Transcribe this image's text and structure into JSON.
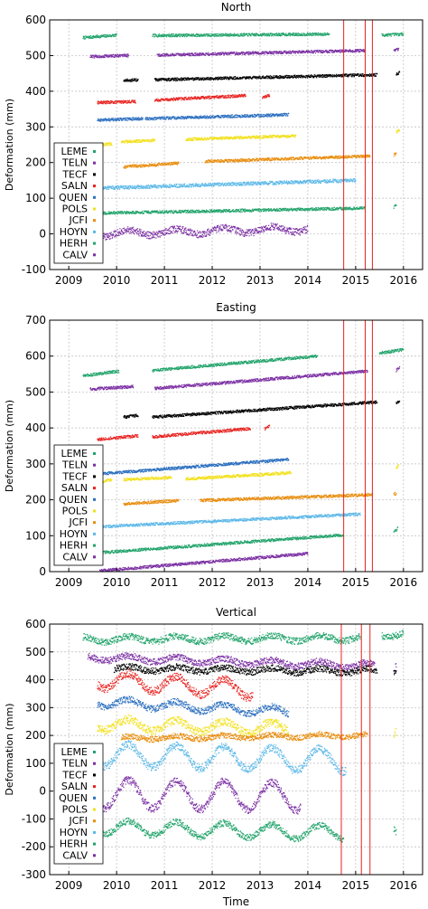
{
  "figure": {
    "xlabel": "Time"
  },
  "chart_data": [
    {
      "type": "scatter",
      "title": "North",
      "xlabel": "",
      "ylabel": "Deformation (mm)",
      "xlim": [
        2008.6,
        2016.4
      ],
      "ylim": [
        -100,
        600
      ],
      "x_ticks": [
        2009,
        2010,
        2011,
        2012,
        2013,
        2014,
        2015,
        2016
      ],
      "y_ticks": [
        -100,
        0,
        100,
        200,
        300,
        400,
        500,
        600
      ],
      "grid": true,
      "legend": {
        "position": "left-center",
        "entries": [
          "LEME",
          "TELN",
          "TECF",
          "SALN",
          "QUEN",
          "POLS",
          "JCFI",
          "HOYN",
          "HERH",
          "CALV"
        ]
      },
      "vlines": [
        2014.75,
        2015.2,
        2015.35
      ],
      "series": [
        {
          "name": "LEME",
          "color": "#22a36b",
          "segments": [
            [
              2009.3,
              2010.0,
              550,
              557
            ],
            [
              2010.75,
              2014.45,
              556,
              560
            ],
            [
              2015.55,
              2016.0,
              557,
              560
            ]
          ],
          "noise": 4
        },
        {
          "name": "TELN",
          "color": "#7b2fa3",
          "segments": [
            [
              2009.45,
              2010.25,
              497,
              500
            ],
            [
              2010.85,
              2015.2,
              501,
              514
            ],
            [
              2015.8,
              2015.9,
              515,
              517
            ]
          ],
          "noise": 4
        },
        {
          "name": "TECF",
          "color": "#000000",
          "segments": [
            [
              2010.15,
              2010.45,
              430,
              432
            ],
            [
              2010.8,
              2015.45,
              432,
              446
            ],
            [
              2015.85,
              2015.92,
              448,
              452
            ]
          ],
          "noise": 4
        },
        {
          "name": "SALN",
          "color": "#e8211e",
          "segments": [
            [
              2009.6,
              2010.4,
              368,
              371
            ],
            [
              2010.8,
              2012.7,
              375,
              388
            ],
            [
              2013.05,
              2013.2,
              383,
              388
            ]
          ],
          "noise": 4
        },
        {
          "name": "QUEN",
          "color": "#2a6ebf",
          "segments": [
            [
              2009.6,
              2010.55,
              319,
              323
            ],
            [
              2010.6,
              2013.6,
              323,
              334
            ]
          ],
          "noise": 4
        },
        {
          "name": "POLS",
          "color": "#f2e01a",
          "segments": [
            [
              2009.6,
              2009.9,
              250,
              252
            ],
            [
              2010.1,
              2010.8,
              258,
              262
            ],
            [
              2011.45,
              2013.75,
              265,
              275
            ],
            [
              2015.85,
              2015.92,
              285,
              290
            ]
          ],
          "noise": 4
        },
        {
          "name": "JCFI",
          "color": "#e98c0c",
          "segments": [
            [
              2010.15,
              2011.3,
              188,
              198
            ],
            [
              2011.85,
              2015.3,
              203,
              218
            ],
            [
              2015.8,
              2015.85,
              222,
              224
            ]
          ],
          "noise": 4
        },
        {
          "name": "HOYN",
          "color": "#5cb8e8",
          "segments": [
            [
              2009.6,
              2015.0,
              128,
              150
            ]
          ],
          "noise": 5
        },
        {
          "name": "HERH",
          "color": "#22a36b",
          "segments": [
            [
              2009.6,
              2015.2,
              58,
              72
            ],
            [
              2015.8,
              2015.85,
              75,
              80
            ]
          ],
          "noise": 4
        },
        {
          "name": "CALV",
          "color": "#7b2fa3",
          "segments": [
            [
              2009.6,
              2014.0,
              0,
              14
            ]
          ],
          "noise": 10,
          "wave": 8
        }
      ]
    },
    {
      "type": "scatter",
      "title": "Easting",
      "xlabel": "",
      "ylabel": "Deformation (mm)",
      "xlim": [
        2008.6,
        2016.4
      ],
      "ylim": [
        0,
        700
      ],
      "x_ticks": [
        2009,
        2010,
        2011,
        2012,
        2013,
        2014,
        2015,
        2016
      ],
      "y_ticks": [
        0,
        100,
        200,
        300,
        400,
        500,
        600,
        700
      ],
      "grid": true,
      "legend": {
        "position": "left-bottom",
        "entries": [
          "LEME",
          "TELN",
          "TECF",
          "SALN",
          "QUEN",
          "POLS",
          "JCFI",
          "HOYN",
          "HERH",
          "CALV"
        ]
      },
      "vlines": [
        2014.75,
        2015.2,
        2015.35
      ],
      "series": [
        {
          "name": "LEME",
          "color": "#22a36b",
          "segments": [
            [
              2009.3,
              2010.05,
              545,
              558
            ],
            [
              2010.75,
              2014.2,
              560,
              600
            ],
            [
              2015.5,
              2016.0,
              608,
              618
            ]
          ],
          "noise": 4
        },
        {
          "name": "TELN",
          "color": "#7b2fa3",
          "segments": [
            [
              2009.45,
              2010.35,
              508,
              515
            ],
            [
              2010.8,
              2015.25,
              510,
              558
            ],
            [
              2015.85,
              2015.92,
              560,
              568
            ]
          ],
          "noise": 4
        },
        {
          "name": "TECF",
          "color": "#000000",
          "segments": [
            [
              2010.15,
              2010.45,
              430,
              435
            ],
            [
              2010.75,
              2015.45,
              430,
              472
            ],
            [
              2015.85,
              2015.92,
              470,
              475
            ]
          ],
          "noise": 4
        },
        {
          "name": "SALN",
          "color": "#e8211e",
          "segments": [
            [
              2009.6,
              2010.45,
              368,
              378
            ],
            [
              2010.75,
              2012.8,
              375,
              398
            ],
            [
              2013.1,
              2013.2,
              398,
              405
            ]
          ],
          "noise": 4
        },
        {
          "name": "QUEN",
          "color": "#2a6ebf",
          "segments": [
            [
              2009.65,
              2013.6,
              272,
              312
            ]
          ],
          "noise": 4
        },
        {
          "name": "POLS",
          "color": "#f2e01a",
          "segments": [
            [
              2009.65,
              2009.9,
              250,
              255
            ],
            [
              2010.15,
              2011.15,
              256,
              262
            ],
            [
              2011.45,
              2013.65,
              258,
              275
            ],
            [
              2015.85,
              2015.9,
              290,
              295
            ]
          ],
          "noise": 4
        },
        {
          "name": "JCFI",
          "color": "#e98c0c",
          "segments": [
            [
              2010.15,
              2011.3,
              188,
              198
            ],
            [
              2011.75,
              2015.35,
              198,
              214
            ],
            [
              2015.8,
              2015.85,
              215,
              218
            ]
          ],
          "noise": 4
        },
        {
          "name": "HOYN",
          "color": "#5cb8e8",
          "segments": [
            [
              2009.65,
              2015.1,
              125,
              160
            ]
          ],
          "noise": 4
        },
        {
          "name": "HERH",
          "color": "#22a36b",
          "segments": [
            [
              2009.6,
              2014.75,
              52,
              102
            ],
            [
              2015.8,
              2015.88,
              110,
              120
            ]
          ],
          "noise": 4
        },
        {
          "name": "CALV",
          "color": "#7b2fa3",
          "segments": [
            [
              2009.65,
              2014.0,
              2,
              50
            ]
          ],
          "noise": 4
        }
      ]
    },
    {
      "type": "scatter",
      "title": "Vertical",
      "xlabel": "Time",
      "ylabel": "Deformation (mm)",
      "xlim": [
        2008.6,
        2016.4
      ],
      "ylim": [
        -300,
        600
      ],
      "x_ticks": [
        2009,
        2010,
        2011,
        2012,
        2013,
        2014,
        2015,
        2016
      ],
      "y_ticks": [
        -300,
        -200,
        -100,
        0,
        100,
        200,
        300,
        400,
        500,
        600
      ],
      "grid": true,
      "legend": {
        "position": "left-bottom",
        "entries": [
          "LEME",
          "TELN",
          "TECF",
          "SALN",
          "QUEN",
          "POLS",
          "JCFI",
          "HOYN",
          "HERH",
          "CALV"
        ]
      },
      "vlines": [
        2014.7,
        2015.12,
        2015.3
      ],
      "series": [
        {
          "name": "LEME",
          "color": "#22a36b",
          "segments": [
            [
              2009.3,
              2015.1,
              545,
              550
            ],
            [
              2015.55,
              2016.0,
              560,
              570
            ]
          ],
          "noise": 12,
          "wave": 10
        },
        {
          "name": "TELN",
          "color": "#7b2fa3",
          "segments": [
            [
              2009.4,
              2015.4,
              480,
              450
            ],
            [
              2015.8,
              2015.85,
              440,
              460
            ]
          ],
          "noise": 12,
          "wave": 10
        },
        {
          "name": "TECF",
          "color": "#000000",
          "segments": [
            [
              2009.95,
              2015.45,
              440,
              430
            ],
            [
              2015.8,
              2015.85,
              430,
              445
            ]
          ],
          "noise": 12,
          "wave": 8
        },
        {
          "name": "SALN",
          "color": "#e8211e",
          "segments": [
            [
              2009.6,
              2012.85,
              400,
              365
            ]
          ],
          "noise": 15,
          "wave": 30
        },
        {
          "name": "QUEN",
          "color": "#2a6ebf",
          "segments": [
            [
              2009.6,
              2013.6,
              320,
              285
            ]
          ],
          "noise": 12,
          "wave": 15
        },
        {
          "name": "POLS",
          "color": "#f2e01a",
          "segments": [
            [
              2009.6,
              2013.6,
              240,
              225
            ],
            [
              2015.8,
              2015.85,
              215,
              230
            ]
          ],
          "noise": 15,
          "wave": 20
        },
        {
          "name": "JCFI",
          "color": "#e98c0c",
          "segments": [
            [
              2010.1,
              2015.25,
              190,
              200
            ]
          ],
          "noise": 10,
          "wave": 6
        },
        {
          "name": "HOYN",
          "color": "#5cb8e8",
          "segments": [
            [
              2009.6,
              2014.8,
              130,
              110
            ]
          ],
          "noise": 15,
          "wave": 40
        },
        {
          "name": "HERH",
          "color": "#22a36b",
          "segments": [
            [
              2009.6,
              2014.75,
              -130,
              -150
            ],
            [
              2015.8,
              2015.85,
              -115,
              -125
            ]
          ],
          "noise": 12,
          "wave": 25
        },
        {
          "name": "CALV",
          "color": "#7b2fa3",
          "segments": [
            [
              2009.6,
              2013.85,
              -10,
              -20
            ]
          ],
          "noise": 15,
          "wave": 50
        }
      ]
    }
  ]
}
